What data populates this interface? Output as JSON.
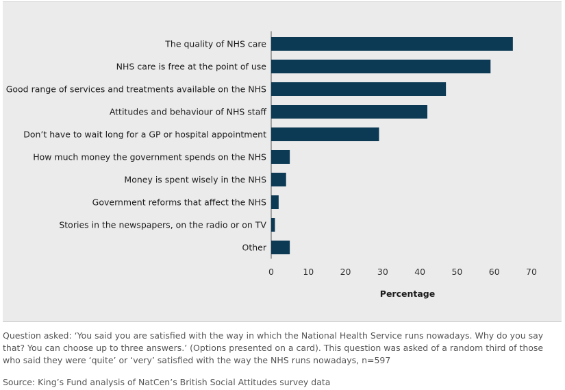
{
  "chart_data": {
    "type": "bar",
    "orientation": "horizontal",
    "categories": [
      "The quality of NHS care",
      "NHS care is free at the point of use",
      "Good range of services and treatments available on the NHS",
      "Attitudes and behaviour of NHS staff",
      "Don’t have to wait long for a GP or hospital appointment",
      "How much money the government spends on the NHS",
      "Money is spent wisely in the NHS",
      "Government reforms that affect the NHS",
      "Stories in the newspapers, on the radio or on TV",
      "Other"
    ],
    "values": [
      65,
      59,
      47,
      42,
      29,
      5,
      4,
      2,
      1,
      5
    ],
    "xlabel": "Percentage",
    "ylabel": "",
    "xlim": [
      0,
      70
    ],
    "xticks": [
      "0",
      "10",
      "20",
      "30",
      "40",
      "50",
      "60",
      "70"
    ],
    "bar_color": "#0c3a55",
    "background_color": "#ebebeb",
    "grid": false
  },
  "caption": "Question asked: ‘You said you are satisfied with the way in which the National Health Service runs nowadays. Why do you say that? You can choose up to three answers.’ (Options presented on a card). This question was asked of a random third of those who said they were ‘quite’ or ‘very’ satisfied with the way the NHS runs nowadays, n=597",
  "source": "Source: King’s Fund analysis of NatCen’s British Social Attitudes survey data"
}
